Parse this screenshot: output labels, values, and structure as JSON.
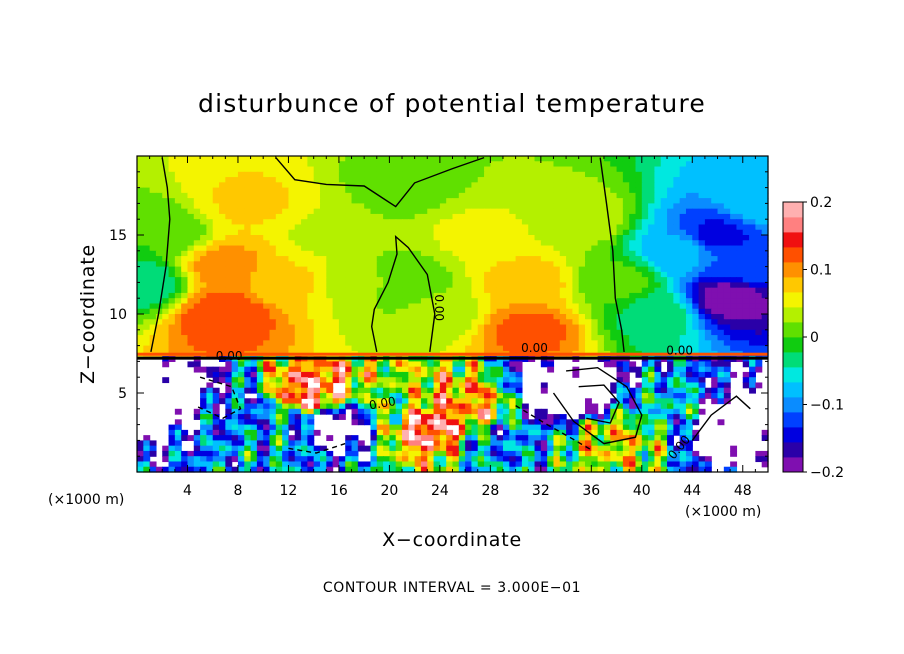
{
  "chart_data": {
    "type": "heatmap",
    "title": "disturbunce of potential temperature",
    "xlabel": "X−coordinate",
    "ylabel": "Z−coordinate",
    "x_unit_left": "(×1000 m)",
    "x_unit_right": "(×1000 m)",
    "xlim": [
      0,
      50
    ],
    "ylim": [
      0,
      20
    ],
    "x_ticks": [
      4,
      8,
      12,
      16,
      20,
      24,
      28,
      32,
      36,
      40,
      44,
      48
    ],
    "x_tick_labels": [
      "4",
      "8",
      "12",
      "16",
      "20",
      "24",
      "28",
      "32",
      "36",
      "40",
      "44",
      "48"
    ],
    "y_ticks": [
      5,
      10,
      15
    ],
    "y_tick_labels": [
      "5",
      "10",
      "15"
    ],
    "contour_interval_text": "CONTOUR INTERVAL = 3.000E−01",
    "contour_labels": [
      "0.00",
      "0.00",
      "0.00",
      "0.00",
      "0.00",
      "0.00"
    ],
    "colorbar": {
      "range": [
        -0.2,
        0.2
      ],
      "tick_values": [
        0.2,
        0.1,
        0,
        -0.1,
        -0.2
      ],
      "tick_labels": [
        "0.2",
        "0.1",
        "0",
        "−0.1",
        "−0.2"
      ],
      "colors": [
        "#7f0fb0",
        "#2a00a8",
        "#0000e0",
        "#0040ff",
        "#0a8cff",
        "#00c0ff",
        "#00e8e0",
        "#00dc78",
        "#10cc10",
        "#60e000",
        "#b4f000",
        "#f4f400",
        "#ffc800",
        "#ff9000",
        "#ff5000",
        "#f01010",
        "#ff8080",
        "#ffb0b0"
      ]
    },
    "regions": {
      "upper": [
        {
          "x": 0.5,
          "z": 12,
          "value": -0.04
        },
        {
          "x": 2,
          "z": 15,
          "value": 0.0
        },
        {
          "x": 7,
          "z": 10,
          "value": 0.13
        },
        {
          "x": 7,
          "z": 13,
          "value": 0.1
        },
        {
          "x": 9,
          "z": 17,
          "value": 0.07
        },
        {
          "x": 12,
          "z": 12,
          "value": 0.07
        },
        {
          "x": 15,
          "z": 15,
          "value": 0.04
        },
        {
          "x": 18,
          "z": 12,
          "value": 0.03
        },
        {
          "x": 21,
          "z": 12,
          "value": 0.0
        },
        {
          "x": 21,
          "z": 18,
          "value": 0.01
        },
        {
          "x": 24,
          "z": 10,
          "value": 0.03
        },
        {
          "x": 27,
          "z": 15,
          "value": 0.05
        },
        {
          "x": 31,
          "z": 12,
          "value": 0.08
        },
        {
          "x": 31,
          "z": 9,
          "value": 0.12
        },
        {
          "x": 35,
          "z": 16,
          "value": 0.04
        },
        {
          "x": 38,
          "z": 12,
          "value": 0.01
        },
        {
          "x": 41,
          "z": 10,
          "value": -0.03
        },
        {
          "x": 43,
          "z": 14,
          "value": -0.08
        },
        {
          "x": 46,
          "z": 15,
          "value": -0.14
        },
        {
          "x": 47,
          "z": 11,
          "value": -0.19
        },
        {
          "x": 48.5,
          "z": 13,
          "value": -0.12
        },
        {
          "x": 49.5,
          "z": 17,
          "value": -0.07
        }
      ],
      "lower": [
        {
          "x": 2,
          "z": 5,
          "value": -0.3
        },
        {
          "x": 8,
          "z": 4,
          "value": -0.12
        },
        {
          "x": 11,
          "z": 2,
          "value": -0.08
        },
        {
          "x": 14,
          "z": 5,
          "value": 0.15
        },
        {
          "x": 16,
          "z": 3,
          "value": -0.25
        },
        {
          "x": 20,
          "z": 4,
          "value": 0.0
        },
        {
          "x": 23,
          "z": 3,
          "value": 0.17
        },
        {
          "x": 26,
          "z": 4,
          "value": 0.1
        },
        {
          "x": 29,
          "z": 2,
          "value": -0.1
        },
        {
          "x": 34,
          "z": 5,
          "value": -0.3
        },
        {
          "x": 38,
          "z": 2,
          "value": 0.05
        },
        {
          "x": 42,
          "z": 4,
          "value": -0.06
        },
        {
          "x": 47,
          "z": 3,
          "value": -0.3
        }
      ]
    }
  }
}
